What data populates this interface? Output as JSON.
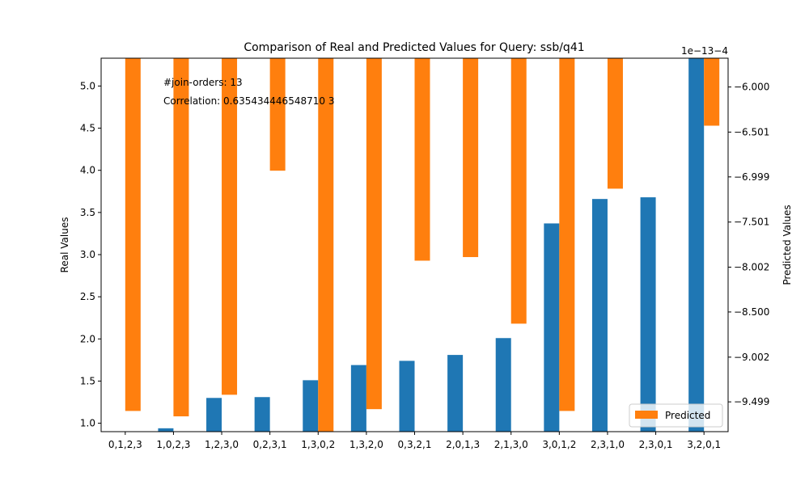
{
  "chart_data": {
    "type": "bar",
    "title": "Comparison of Real and Predicted Values for Query: ssb/q41",
    "xlabel": "",
    "categories": [
      "0,1,2,3",
      "1,0,2,3",
      "1,2,3,0",
      "0,2,3,1",
      "1,3,0,2",
      "1,3,2,0",
      "0,3,2,1",
      "2,0,1,3",
      "2,1,3,0",
      "3,0,1,2",
      "2,3,1,0",
      "2,3,0,1",
      "3,2,0,1"
    ],
    "y_left": {
      "label": "Real Values",
      "ylim": [
        0.9,
        5.33
      ],
      "ticks": [
        "1.0",
        "1.5",
        "2.0",
        "2.5",
        "3.0",
        "3.5",
        "4.0",
        "4.5",
        "5.0"
      ]
    },
    "y_right": {
      "label": "Predicted Values",
      "offset_text": "1e−13−4",
      "ylim": [
        -9.83,
        -5.68
      ],
      "ticks": [
        "−6.000",
        "−6.501",
        "−6.999",
        "−7.501",
        "−8.002",
        "−8.500",
        "−9.002",
        "−9.499"
      ]
    },
    "series": [
      {
        "name": "",
        "axis": "left",
        "color": "#1f77b4",
        "values": [
          0.88,
          0.94,
          1.3,
          1.31,
          1.51,
          1.69,
          1.74,
          1.81,
          2.01,
          3.37,
          3.66,
          3.68,
          5.35
        ]
      },
      {
        "name": "Predicted",
        "axis": "right",
        "color": "#ff7f0e",
        "values": [
          -9.6,
          -9.66,
          -9.42,
          -6.93,
          -9.85,
          -9.58,
          -7.93,
          -7.89,
          -8.63,
          -9.6,
          -7.13,
          -5.68,
          -6.43
        ]
      }
    ],
    "annotations": [
      "#join-orders: 13",
      "Correlation: 0.635434446548710 3"
    ],
    "legend": {
      "entries": [
        "Predicted"
      ],
      "position": "lower-right"
    },
    "grid": false
  }
}
